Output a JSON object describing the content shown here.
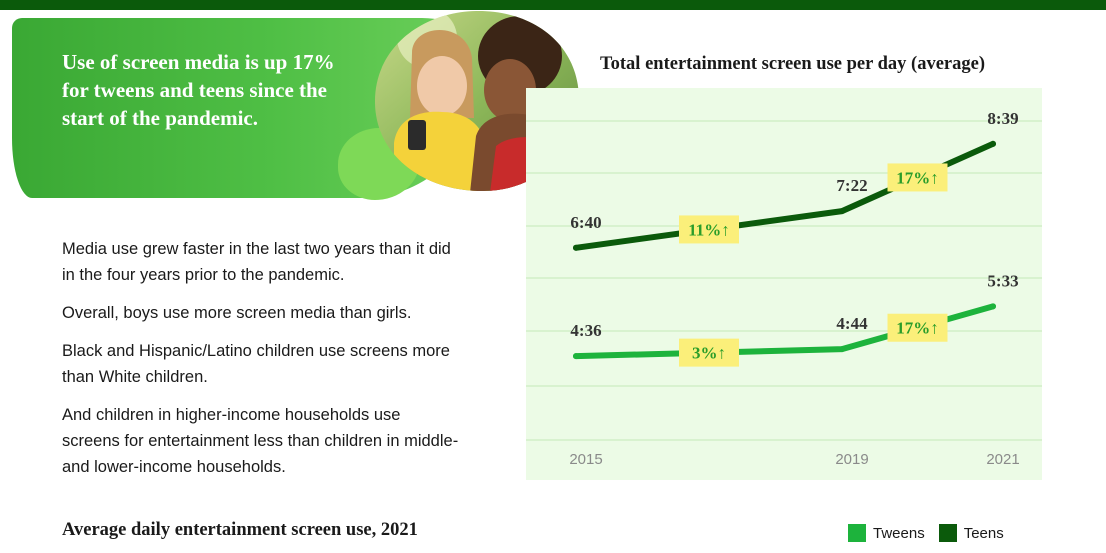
{
  "hero": {
    "headline": "Use of screen media is up 17% for tweens and teens since the start of the pandemic."
  },
  "body": {
    "paragraphs": [
      "Media use grew faster in the last two years than it did in the four years prior to the pandemic.",
      "Overall, boys use more screen media than girls.",
      "Black and Hispanic/Latino children use screens more than White children.",
      "And children in higher-income households use screens for entertainment less than children in middle- and lower-income households."
    ]
  },
  "bottom_title": "Average daily entertainment screen use, 2021",
  "legend": [
    {
      "label": "Tweens",
      "color": "#1db33c"
    },
    {
      "label": "Teens",
      "color": "#0b5a0b"
    }
  ],
  "colors": {
    "top_bar": "#0b5a0b",
    "plot_bg": "#ecfbe6",
    "badge_bg": "#fbef7a",
    "badge_text": "#2a9d2a"
  },
  "chart_data": {
    "type": "line",
    "title": "Total entertainment screen use per day (average)",
    "x": [
      2015,
      2019,
      2021
    ],
    "x_tick_labels": [
      "2015",
      "2019",
      "2021"
    ],
    "ylabel": "",
    "xlabel": "",
    "grid": true,
    "legend_position": "bottom-right",
    "y_unit": "hours:minutes",
    "ylim_minutes": [
      180,
      560
    ],
    "series": [
      {
        "name": "Teens",
        "values": [
          "6:40",
          "7:22",
          "8:39"
        ],
        "minutes": [
          400,
          442,
          519
        ],
        "color": "#0b5a0b"
      },
      {
        "name": "Tweens",
        "values": [
          "4:36",
          "4:44",
          "5:33"
        ],
        "minutes": [
          276,
          284,
          333
        ],
        "color": "#1db33c"
      }
    ],
    "badges": [
      {
        "series": "Teens",
        "text": "11%",
        "arrow": "↑",
        "between": [
          2015,
          2019
        ]
      },
      {
        "series": "Teens",
        "text": "17%",
        "arrow": "↑",
        "between": [
          2019,
          2021
        ]
      },
      {
        "series": "Tweens",
        "text": "3%",
        "arrow": "↑",
        "between": [
          2015,
          2019
        ]
      },
      {
        "series": "Tweens",
        "text": "17%",
        "arrow": "↑",
        "between": [
          2019,
          2021
        ]
      }
    ]
  }
}
